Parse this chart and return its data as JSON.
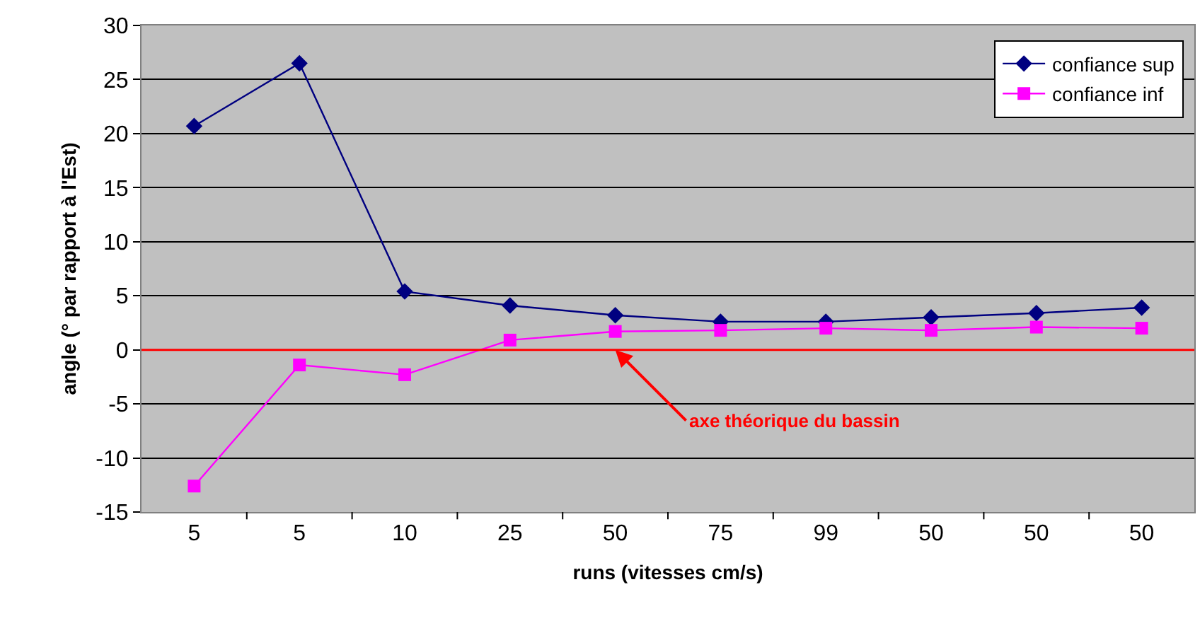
{
  "chart_data": {
    "type": "line",
    "xlabel": "runs (vitesses cm/s)",
    "ylabel": "angle (° par rapport à l'Est)",
    "categories": [
      "5",
      "5",
      "10",
      "25",
      "50",
      "75",
      "99",
      "50",
      "50",
      "50"
    ],
    "series": [
      {
        "name": "confiance sup",
        "color": "#000080",
        "marker": "diamond",
        "values": [
          20.7,
          26.5,
          5.4,
          4.1,
          3.2,
          2.6,
          2.6,
          3.0,
          3.4,
          3.9
        ]
      },
      {
        "name": "confiance inf",
        "color": "#ff00ff",
        "marker": "square",
        "values": [
          -12.6,
          -1.4,
          -2.3,
          0.9,
          1.7,
          1.8,
          2.0,
          1.8,
          2.1,
          2.0
        ]
      }
    ],
    "ylim": [
      -15,
      30
    ],
    "yticks": [
      -15,
      -10,
      -5,
      0,
      5,
      10,
      15,
      20,
      25,
      30
    ],
    "grid": "y",
    "legend": "top right",
    "line_style": "solid",
    "ref_lines": [
      {
        "axis": "y",
        "value": 0,
        "label": "axe théorique du bassin",
        "color": "#ff0000"
      }
    ]
  }
}
